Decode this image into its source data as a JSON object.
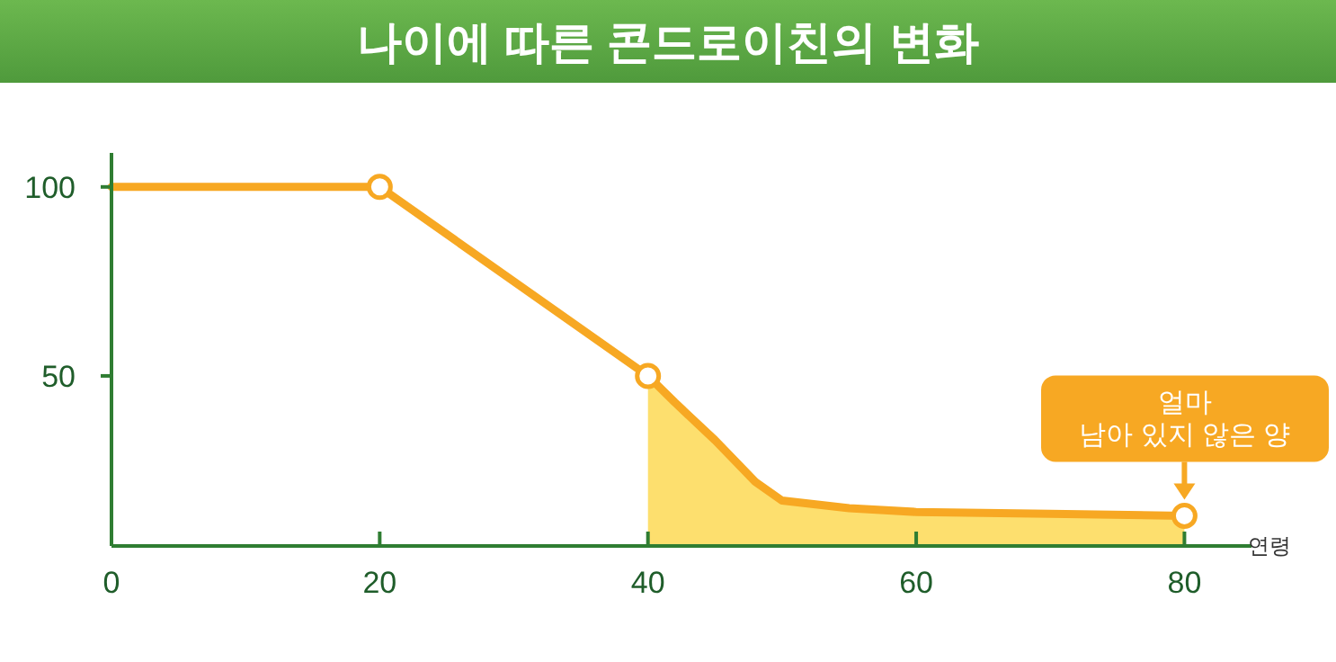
{
  "chart_data": {
    "type": "line",
    "title": "나이에 따른 콘드로이친의 변화",
    "xlabel": "연령",
    "xlim": [
      0,
      85
    ],
    "ylim": [
      5,
      109
    ],
    "xticks": [
      0,
      20,
      40,
      60,
      80
    ],
    "yticks": [
      50,
      100
    ],
    "grid": false,
    "series": [
      {
        "type": "area",
        "color": "#fddf6e",
        "x": [
          40,
          42,
          45,
          48,
          50,
          55,
          60,
          70,
          80
        ],
        "values": [
          50,
          43,
          33,
          22,
          17,
          15,
          14,
          13.5,
          13
        ]
      },
      {
        "color": "#f7a823",
        "x": [
          0,
          20,
          40,
          42,
          45,
          48,
          50,
          55,
          60,
          70,
          80
        ],
        "values": [
          100,
          100,
          50,
          43,
          33,
          22,
          17,
          15,
          14,
          13.5,
          13
        ]
      },
      {
        "type": "scatter",
        "color": "#f7a823",
        "marker": "circle",
        "x": [
          20,
          40,
          80
        ],
        "values": [
          100,
          50,
          13
        ]
      }
    ],
    "annotations": [
      {
        "text": "얼마\n남아 있지 않은 양",
        "x": 80,
        "y": 13
      }
    ]
  }
}
